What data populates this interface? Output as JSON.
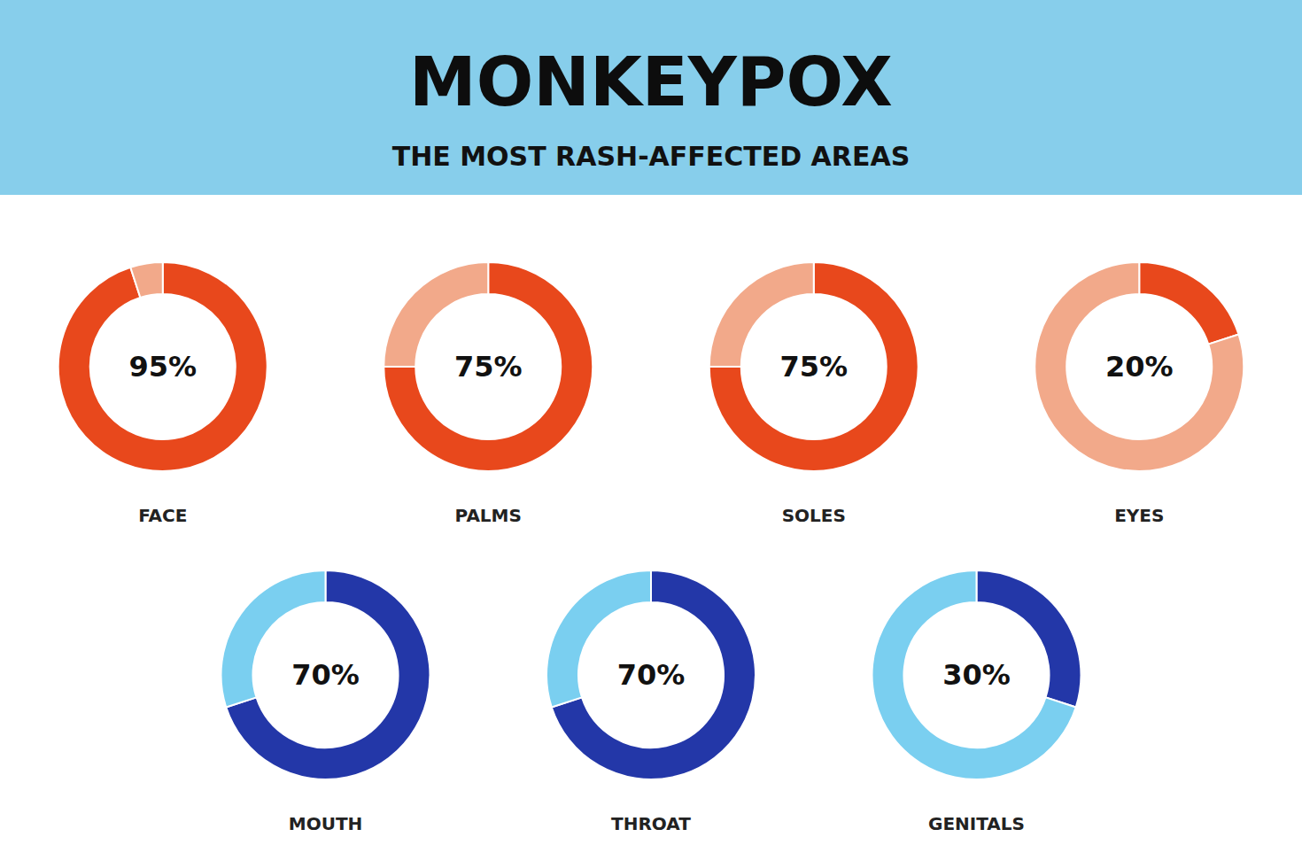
{
  "title": "MONKEYPOX",
  "subtitle": "THE MOST RASH-AFFECTED AREAS",
  "chart_data": [
    {
      "type": "pie",
      "title": "FACE",
      "values": [
        95,
        5
      ],
      "colors": [
        "#E8481C",
        "#F2A98A"
      ],
      "data_labels": true,
      "value_labels": [
        "95%",
        null
      ]
    },
    {
      "type": "pie",
      "title": "PALMS",
      "values": [
        75,
        25
      ],
      "colors": [
        "#E8481C",
        "#F2A98A"
      ],
      "data_labels": true,
      "value_labels": [
        "75%",
        null
      ]
    },
    {
      "type": "pie",
      "title": "SOLES",
      "values": [
        75,
        25
      ],
      "colors": [
        "#E8481C",
        "#F2A98A"
      ],
      "data_labels": true,
      "value_labels": [
        "75%",
        null
      ]
    },
    {
      "type": "pie",
      "title": "EYES",
      "values": [
        20,
        80
      ],
      "colors": [
        "#E8481C",
        "#F2A98A"
      ],
      "data_labels": true,
      "value_labels": [
        "20%",
        null
      ]
    },
    {
      "type": "pie",
      "title": "MOUTH",
      "values": [
        70,
        30
      ],
      "colors": [
        "#2337A8",
        "#7ACFF0"
      ],
      "data_labels": true,
      "value_labels": [
        "70%",
        null
      ]
    },
    {
      "type": "pie",
      "title": "THROAT",
      "values": [
        70,
        30
      ],
      "colors": [
        "#2337A8",
        "#7ACFF0"
      ],
      "data_labels": true,
      "value_labels": [
        "70%",
        null
      ]
    },
    {
      "type": "pie",
      "title": "GENITALS",
      "values": [
        30,
        70
      ],
      "colors": [
        "#2337A8",
        "#7ACFF0"
      ],
      "data_labels": true,
      "value_labels": [
        "30%",
        null
      ]
    }
  ]
}
